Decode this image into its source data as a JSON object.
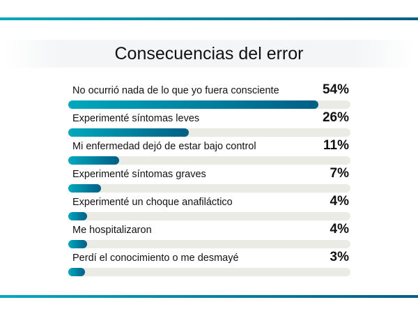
{
  "chart_data": {
    "type": "bar",
    "orientation": "horizontal",
    "title": "Consecuencias del error",
    "categories": [
      "No ocurrió nada de lo que yo fuera consciente",
      "Experimenté síntomas leves",
      "Mi enfermedad dejó de estar bajo control",
      "Experimenté síntomas graves",
      "Experimenté un choque anafiláctico",
      "Me hospitalizaron",
      "Perdí el conocimiento o me desmayé"
    ],
    "values": [
      54,
      26,
      11,
      7,
      4,
      4,
      3
    ],
    "value_labels": [
      "54%",
      "26%",
      "11%",
      "7%",
      "4%",
      "4%",
      "3%"
    ],
    "unit": "%",
    "grid": false,
    "colors": {
      "bar_start": "#00a8bd",
      "bar_end": "#005f85",
      "track": "#ebebe6"
    }
  }
}
